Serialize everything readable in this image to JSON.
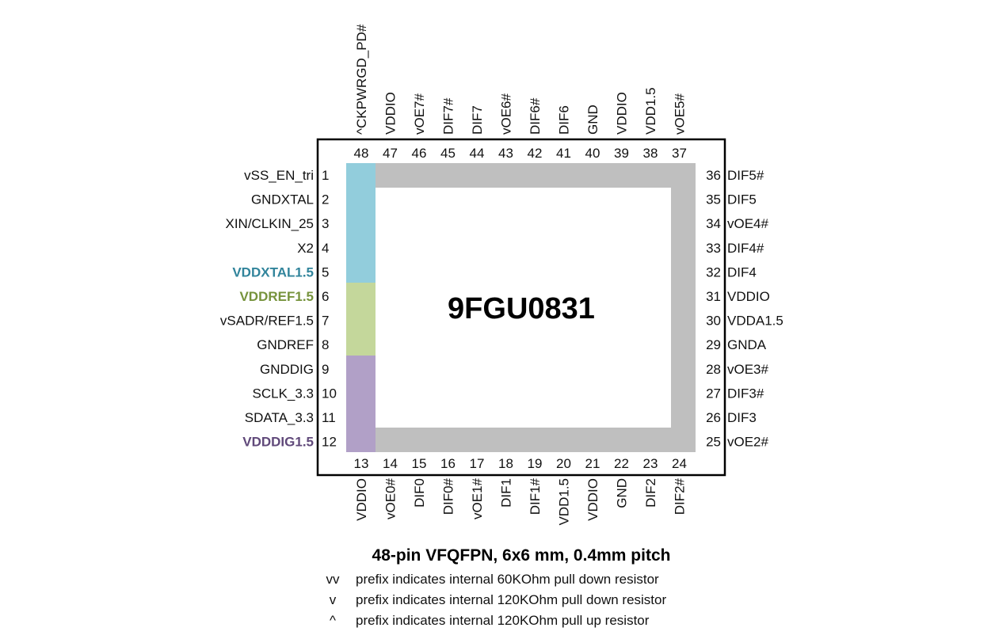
{
  "chip_name": "9FGU0831",
  "package_caption": "48-pin VFQFPN, 6x6 mm, 0.4mm pitch",
  "legend": [
    {
      "symbol": "vv",
      "text": "prefix indicates internal 60KOhm pull down resistor"
    },
    {
      "symbol": "v",
      "text": "prefix indicates internal 120KOhm pull down resistor"
    },
    {
      "symbol": "^",
      "text": "prefix indicates internal 120KOhm pull up resistor"
    }
  ],
  "colors": {
    "xtal_region": "#92cddc",
    "ref_region": "#c4d79b",
    "dig_region": "#b1a0c7",
    "frame": "#bfbfbf",
    "xtal_label": "#31849b",
    "ref_label": "#76933c",
    "dig_label": "#60497a"
  },
  "pins": {
    "left": [
      {
        "num": "1",
        "name": "vSS_EN_tri"
      },
      {
        "num": "2",
        "name": "GNDXTAL"
      },
      {
        "num": "3",
        "name": "XIN/CLKIN_25"
      },
      {
        "num": "4",
        "name": "X2"
      },
      {
        "num": "5",
        "name": "VDDXTAL1.5",
        "highlight": "xtal_label"
      },
      {
        "num": "6",
        "name": "VDDREF1.5",
        "highlight": "ref_label"
      },
      {
        "num": "7",
        "name": "vSADR/REF1.5"
      },
      {
        "num": "8",
        "name": "GNDREF"
      },
      {
        "num": "9",
        "name": "GNDDIG"
      },
      {
        "num": "10",
        "name": "SCLK_3.3"
      },
      {
        "num": "11",
        "name": "SDATA_3.3"
      },
      {
        "num": "12",
        "name": "VDDDIG1.5",
        "highlight": "dig_label"
      }
    ],
    "bottom": [
      {
        "num": "13",
        "name": "VDDIO"
      },
      {
        "num": "14",
        "name": "vOE0#"
      },
      {
        "num": "15",
        "name": "DIF0"
      },
      {
        "num": "16",
        "name": "DIF0#"
      },
      {
        "num": "17",
        "name": "vOE1#"
      },
      {
        "num": "18",
        "name": "DIF1"
      },
      {
        "num": "19",
        "name": "DIF1#"
      },
      {
        "num": "20",
        "name": "VDD1.5"
      },
      {
        "num": "21",
        "name": "VDDIO"
      },
      {
        "num": "22",
        "name": "GND"
      },
      {
        "num": "23",
        "name": "DIF2"
      },
      {
        "num": "24",
        "name": "DIF2#"
      }
    ],
    "right": [
      {
        "num": "36",
        "name": "DIF5#"
      },
      {
        "num": "35",
        "name": "DIF5"
      },
      {
        "num": "34",
        "name": "vOE4#"
      },
      {
        "num": "33",
        "name": "DIF4#"
      },
      {
        "num": "32",
        "name": "DIF4"
      },
      {
        "num": "31",
        "name": "VDDIO"
      },
      {
        "num": "30",
        "name": "VDDA1.5"
      },
      {
        "num": "29",
        "name": "GNDA"
      },
      {
        "num": "28",
        "name": "vOE3#"
      },
      {
        "num": "27",
        "name": "DIF3#"
      },
      {
        "num": "26",
        "name": "DIF3"
      },
      {
        "num": "25",
        "name": "vOE2#"
      }
    ],
    "top": [
      {
        "num": "48",
        "name": "^CKPWRGD_PD#"
      },
      {
        "num": "47",
        "name": "VDDIO"
      },
      {
        "num": "46",
        "name": "vOE7#"
      },
      {
        "num": "45",
        "name": "DIF7#"
      },
      {
        "num": "44",
        "name": "DIF7"
      },
      {
        "num": "43",
        "name": "vOE6#"
      },
      {
        "num": "42",
        "name": "DIF6#"
      },
      {
        "num": "41",
        "name": "DIF6"
      },
      {
        "num": "40",
        "name": "GND"
      },
      {
        "num": "39",
        "name": "VDDIO"
      },
      {
        "num": "38",
        "name": "VDD1.5"
      },
      {
        "num": "37",
        "name": "vOE5#"
      }
    ]
  }
}
